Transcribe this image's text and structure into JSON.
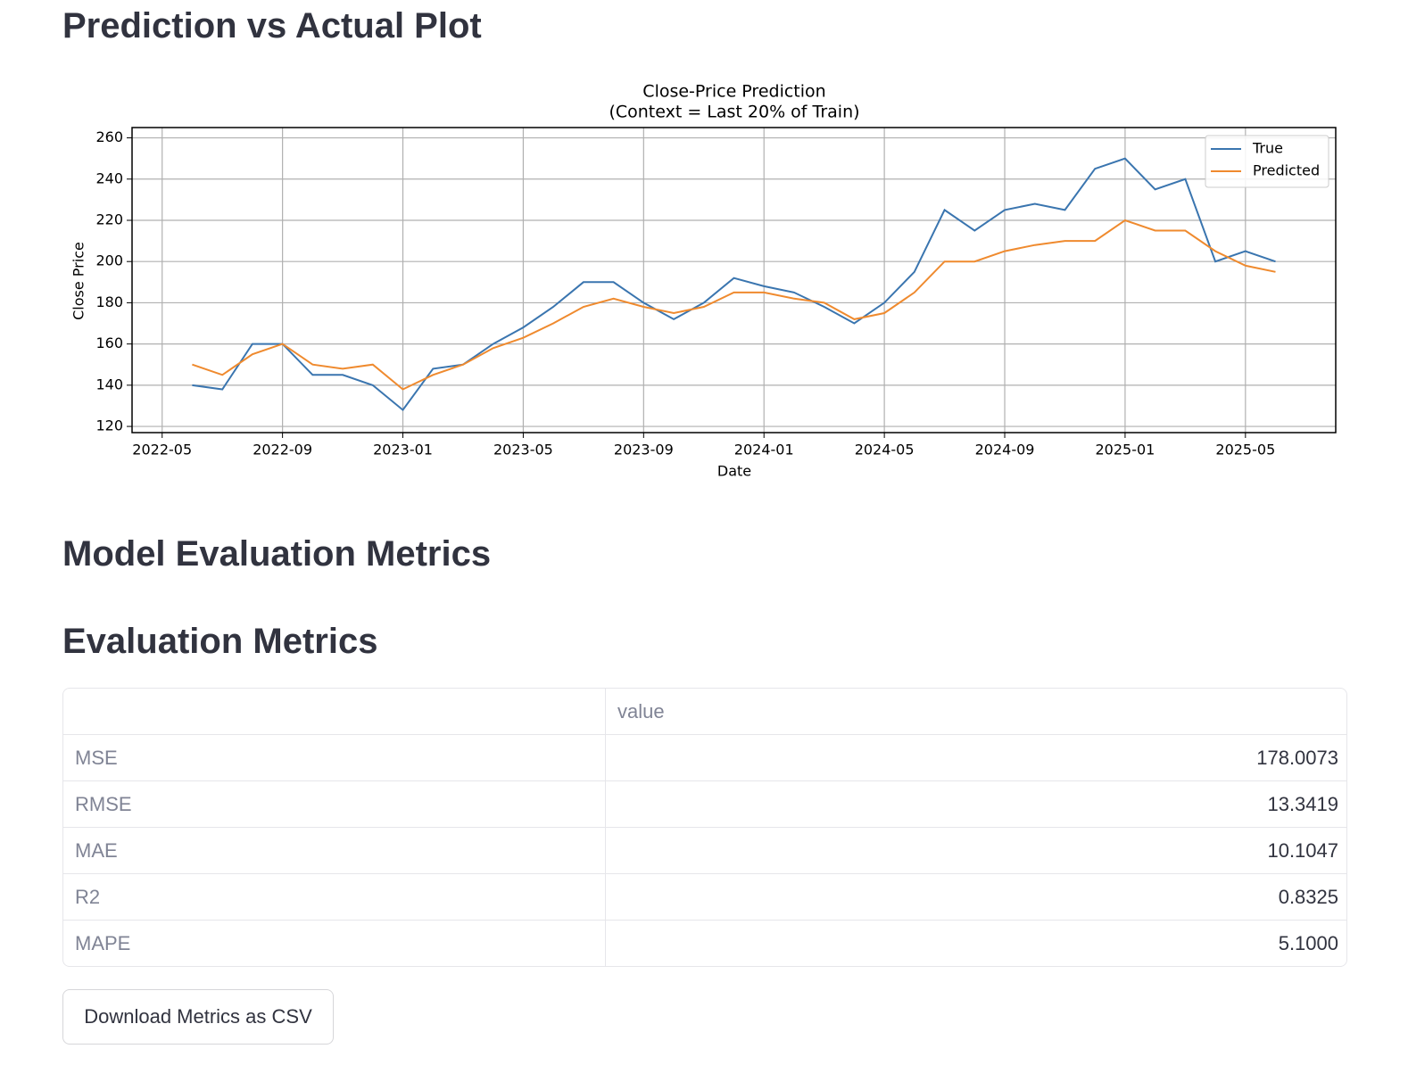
{
  "headings": [
    "Prediction vs Actual Plot",
    "Model Evaluation Metrics",
    "Evaluation Metrics"
  ],
  "chart_data": {
    "type": "line",
    "title": "Close-Price Prediction",
    "subtitle": "(Context = Last 20% of Train)",
    "xlabel": "Date",
    "ylabel": "Close Price",
    "x": [
      "2022-06",
      "2022-07",
      "2022-08",
      "2022-09",
      "2022-10",
      "2022-11",
      "2022-12",
      "2023-01",
      "2023-02",
      "2023-03",
      "2023-04",
      "2023-05",
      "2023-06",
      "2023-07",
      "2023-08",
      "2023-09",
      "2023-10",
      "2023-11",
      "2023-12",
      "2024-01",
      "2024-02",
      "2024-03",
      "2024-04",
      "2024-05",
      "2024-06",
      "2024-07",
      "2024-08",
      "2024-09",
      "2024-10",
      "2024-11",
      "2024-12",
      "2025-01",
      "2025-02",
      "2025-03",
      "2025-04",
      "2025-05",
      "2025-06"
    ],
    "series": [
      {
        "name": "True",
        "color": "#3a75af",
        "values": [
          140,
          138,
          160,
          160,
          145,
          145,
          140,
          128,
          148,
          150,
          160,
          168,
          178,
          190,
          190,
          180,
          172,
          180,
          192,
          188,
          185,
          178,
          170,
          180,
          195,
          225,
          215,
          225,
          228,
          225,
          245,
          250,
          235,
          240,
          200,
          205,
          200
        ]
      },
      {
        "name": "Predicted",
        "color": "#ef8a2e",
        "values": [
          150,
          145,
          155,
          160,
          150,
          148,
          150,
          138,
          145,
          150,
          158,
          163,
          170,
          178,
          182,
          178,
          175,
          178,
          185,
          185,
          182,
          180,
          172,
          175,
          185,
          200,
          200,
          205,
          208,
          210,
          210,
          220,
          215,
          215,
          205,
          198,
          195
        ]
      }
    ],
    "xlim": [
      "2022-04",
      "2025-08"
    ],
    "xticks": [
      "2022-05",
      "2022-09",
      "2023-01",
      "2023-05",
      "2023-09",
      "2024-01",
      "2024-05",
      "2024-09",
      "2025-01",
      "2025-05"
    ],
    "ylim": [
      117,
      265
    ],
    "yticks": [
      120,
      140,
      160,
      180,
      200,
      220,
      240,
      260
    ],
    "grid": true,
    "legend": "upper right"
  },
  "table": {
    "header": [
      "value"
    ],
    "rows": [
      [
        "MSE",
        "178.0073"
      ],
      [
        "RMSE",
        "13.3419"
      ],
      [
        "MAE",
        "10.1047"
      ],
      [
        "R2",
        "0.8325"
      ],
      [
        "MAPE",
        "5.1000"
      ]
    ]
  },
  "button": "Download Metrics as CSV"
}
